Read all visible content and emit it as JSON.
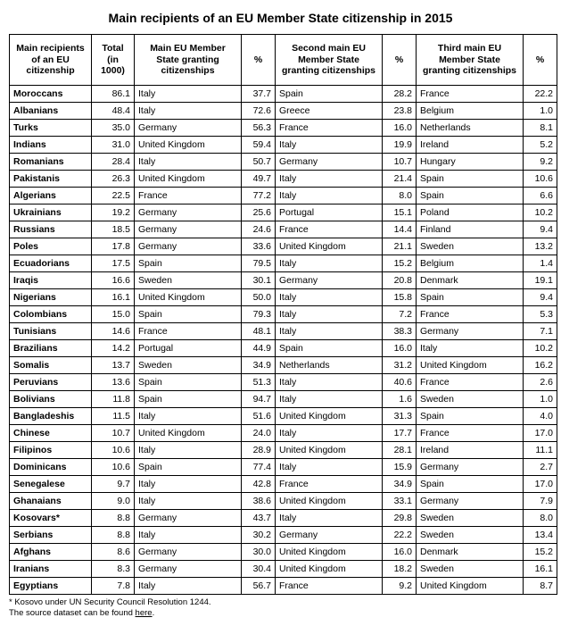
{
  "title": "Main recipients of an EU Member State citizenship in 2015",
  "columns": [
    "Main recipients of an EU citizenship",
    "Total (in 1000)",
    "Main EU Member State granting citizenships",
    "%",
    "Second main EU Member State granting citizenships",
    "%",
    "Third main EU Member State granting citizenships",
    "%"
  ],
  "rows": [
    [
      "Moroccans",
      "86.1",
      "Italy",
      "37.7",
      "Spain",
      "28.2",
      "France",
      "22.2"
    ],
    [
      "Albanians",
      "48.4",
      "Italy",
      "72.6",
      "Greece",
      "23.8",
      "Belgium",
      "1.0"
    ],
    [
      "Turks",
      "35.0",
      "Germany",
      "56.3",
      "France",
      "16.0",
      "Netherlands",
      "8.1"
    ],
    [
      "Indians",
      "31.0",
      "United Kingdom",
      "59.4",
      "Italy",
      "19.9",
      "Ireland",
      "5.2"
    ],
    [
      "Romanians",
      "28.4",
      "Italy",
      "50.7",
      "Germany",
      "10.7",
      "Hungary",
      "9.2"
    ],
    [
      "Pakistanis",
      "26.3",
      "United Kingdom",
      "49.7",
      "Italy",
      "21.4",
      "Spain",
      "10.6"
    ],
    [
      "Algerians",
      "22.5",
      "France",
      "77.2",
      "Italy",
      "8.0",
      "Spain",
      "6.6"
    ],
    [
      "Ukrainians",
      "19.2",
      "Germany",
      "25.6",
      "Portugal",
      "15.1",
      "Poland",
      "10.2"
    ],
    [
      "Russians",
      "18.5",
      "Germany",
      "24.6",
      "France",
      "14.4",
      "Finland",
      "9.4"
    ],
    [
      "Poles",
      "17.8",
      "Germany",
      "33.6",
      "United Kingdom",
      "21.1",
      "Sweden",
      "13.2"
    ],
    [
      "Ecuadorians",
      "17.5",
      "Spain",
      "79.5",
      "Italy",
      "15.2",
      "Belgium",
      "1.4"
    ],
    [
      "Iraqis",
      "16.6",
      "Sweden",
      "30.1",
      "Germany",
      "20.8",
      "Denmark",
      "19.1"
    ],
    [
      "Nigerians",
      "16.1",
      "United Kingdom",
      "50.0",
      "Italy",
      "15.8",
      "Spain",
      "9.4"
    ],
    [
      "Colombians",
      "15.0",
      "Spain",
      "79.3",
      "Italy",
      "7.2",
      "France",
      "5.3"
    ],
    [
      "Tunisians",
      "14.6",
      "France",
      "48.1",
      "Italy",
      "38.3",
      "Germany",
      "7.1"
    ],
    [
      "Brazilians",
      "14.2",
      "Portugal",
      "44.9",
      "Spain",
      "16.0",
      "Italy",
      "10.2"
    ],
    [
      "Somalis",
      "13.7",
      "Sweden",
      "34.9",
      "Netherlands",
      "31.2",
      "United Kingdom",
      "16.2"
    ],
    [
      "Peruvians",
      "13.6",
      "Spain",
      "51.3",
      "Italy",
      "40.6",
      "France",
      "2.6"
    ],
    [
      "Bolivians",
      "11.8",
      "Spain",
      "94.7",
      "Italy",
      "1.6",
      "Sweden",
      "1.0"
    ],
    [
      "Bangladeshis",
      "11.5",
      "Italy",
      "51.6",
      "United Kingdom",
      "31.3",
      "Spain",
      "4.0"
    ],
    [
      "Chinese",
      "10.7",
      "United Kingdom",
      "24.0",
      "Italy",
      "17.7",
      "France",
      "17.0"
    ],
    [
      "Filipinos",
      "10.6",
      "Italy",
      "28.9",
      "United Kingdom",
      "28.1",
      "Ireland",
      "11.1"
    ],
    [
      "Dominicans",
      "10.6",
      "Spain",
      "77.4",
      "Italy",
      "15.9",
      "Germany",
      "2.7"
    ],
    [
      "Senegalese",
      "9.7",
      "Italy",
      "42.8",
      "France",
      "34.9",
      "Spain",
      "17.0"
    ],
    [
      "Ghanaians",
      "9.0",
      "Italy",
      "38.6",
      "United Kingdom",
      "33.1",
      "Germany",
      "7.9"
    ],
    [
      "Kosovars*",
      "8.8",
      "Germany",
      "43.7",
      "Italy",
      "29.8",
      "Sweden",
      "8.0"
    ],
    [
      "Serbians",
      "8.8",
      "Italy",
      "30.2",
      "Germany",
      "22.2",
      "Sweden",
      "13.4"
    ],
    [
      "Afghans",
      "8.6",
      "Germany",
      "30.0",
      "United Kingdom",
      "16.0",
      "Denmark",
      "15.2"
    ],
    [
      "Iranians",
      "8.3",
      "Germany",
      "30.4",
      "United Kingdom",
      "18.2",
      "Sweden",
      "16.1"
    ],
    [
      "Egyptians",
      "7.8",
      "Italy",
      "56.7",
      "France",
      "9.2",
      "United Kingdom",
      "8.7"
    ]
  ],
  "footnotes": {
    "line1": "* Kosovo under UN Security Council Resolution 1244.",
    "line2_prefix": "The source dataset can be found ",
    "line2_link": "here",
    "line2_suffix": "."
  }
}
